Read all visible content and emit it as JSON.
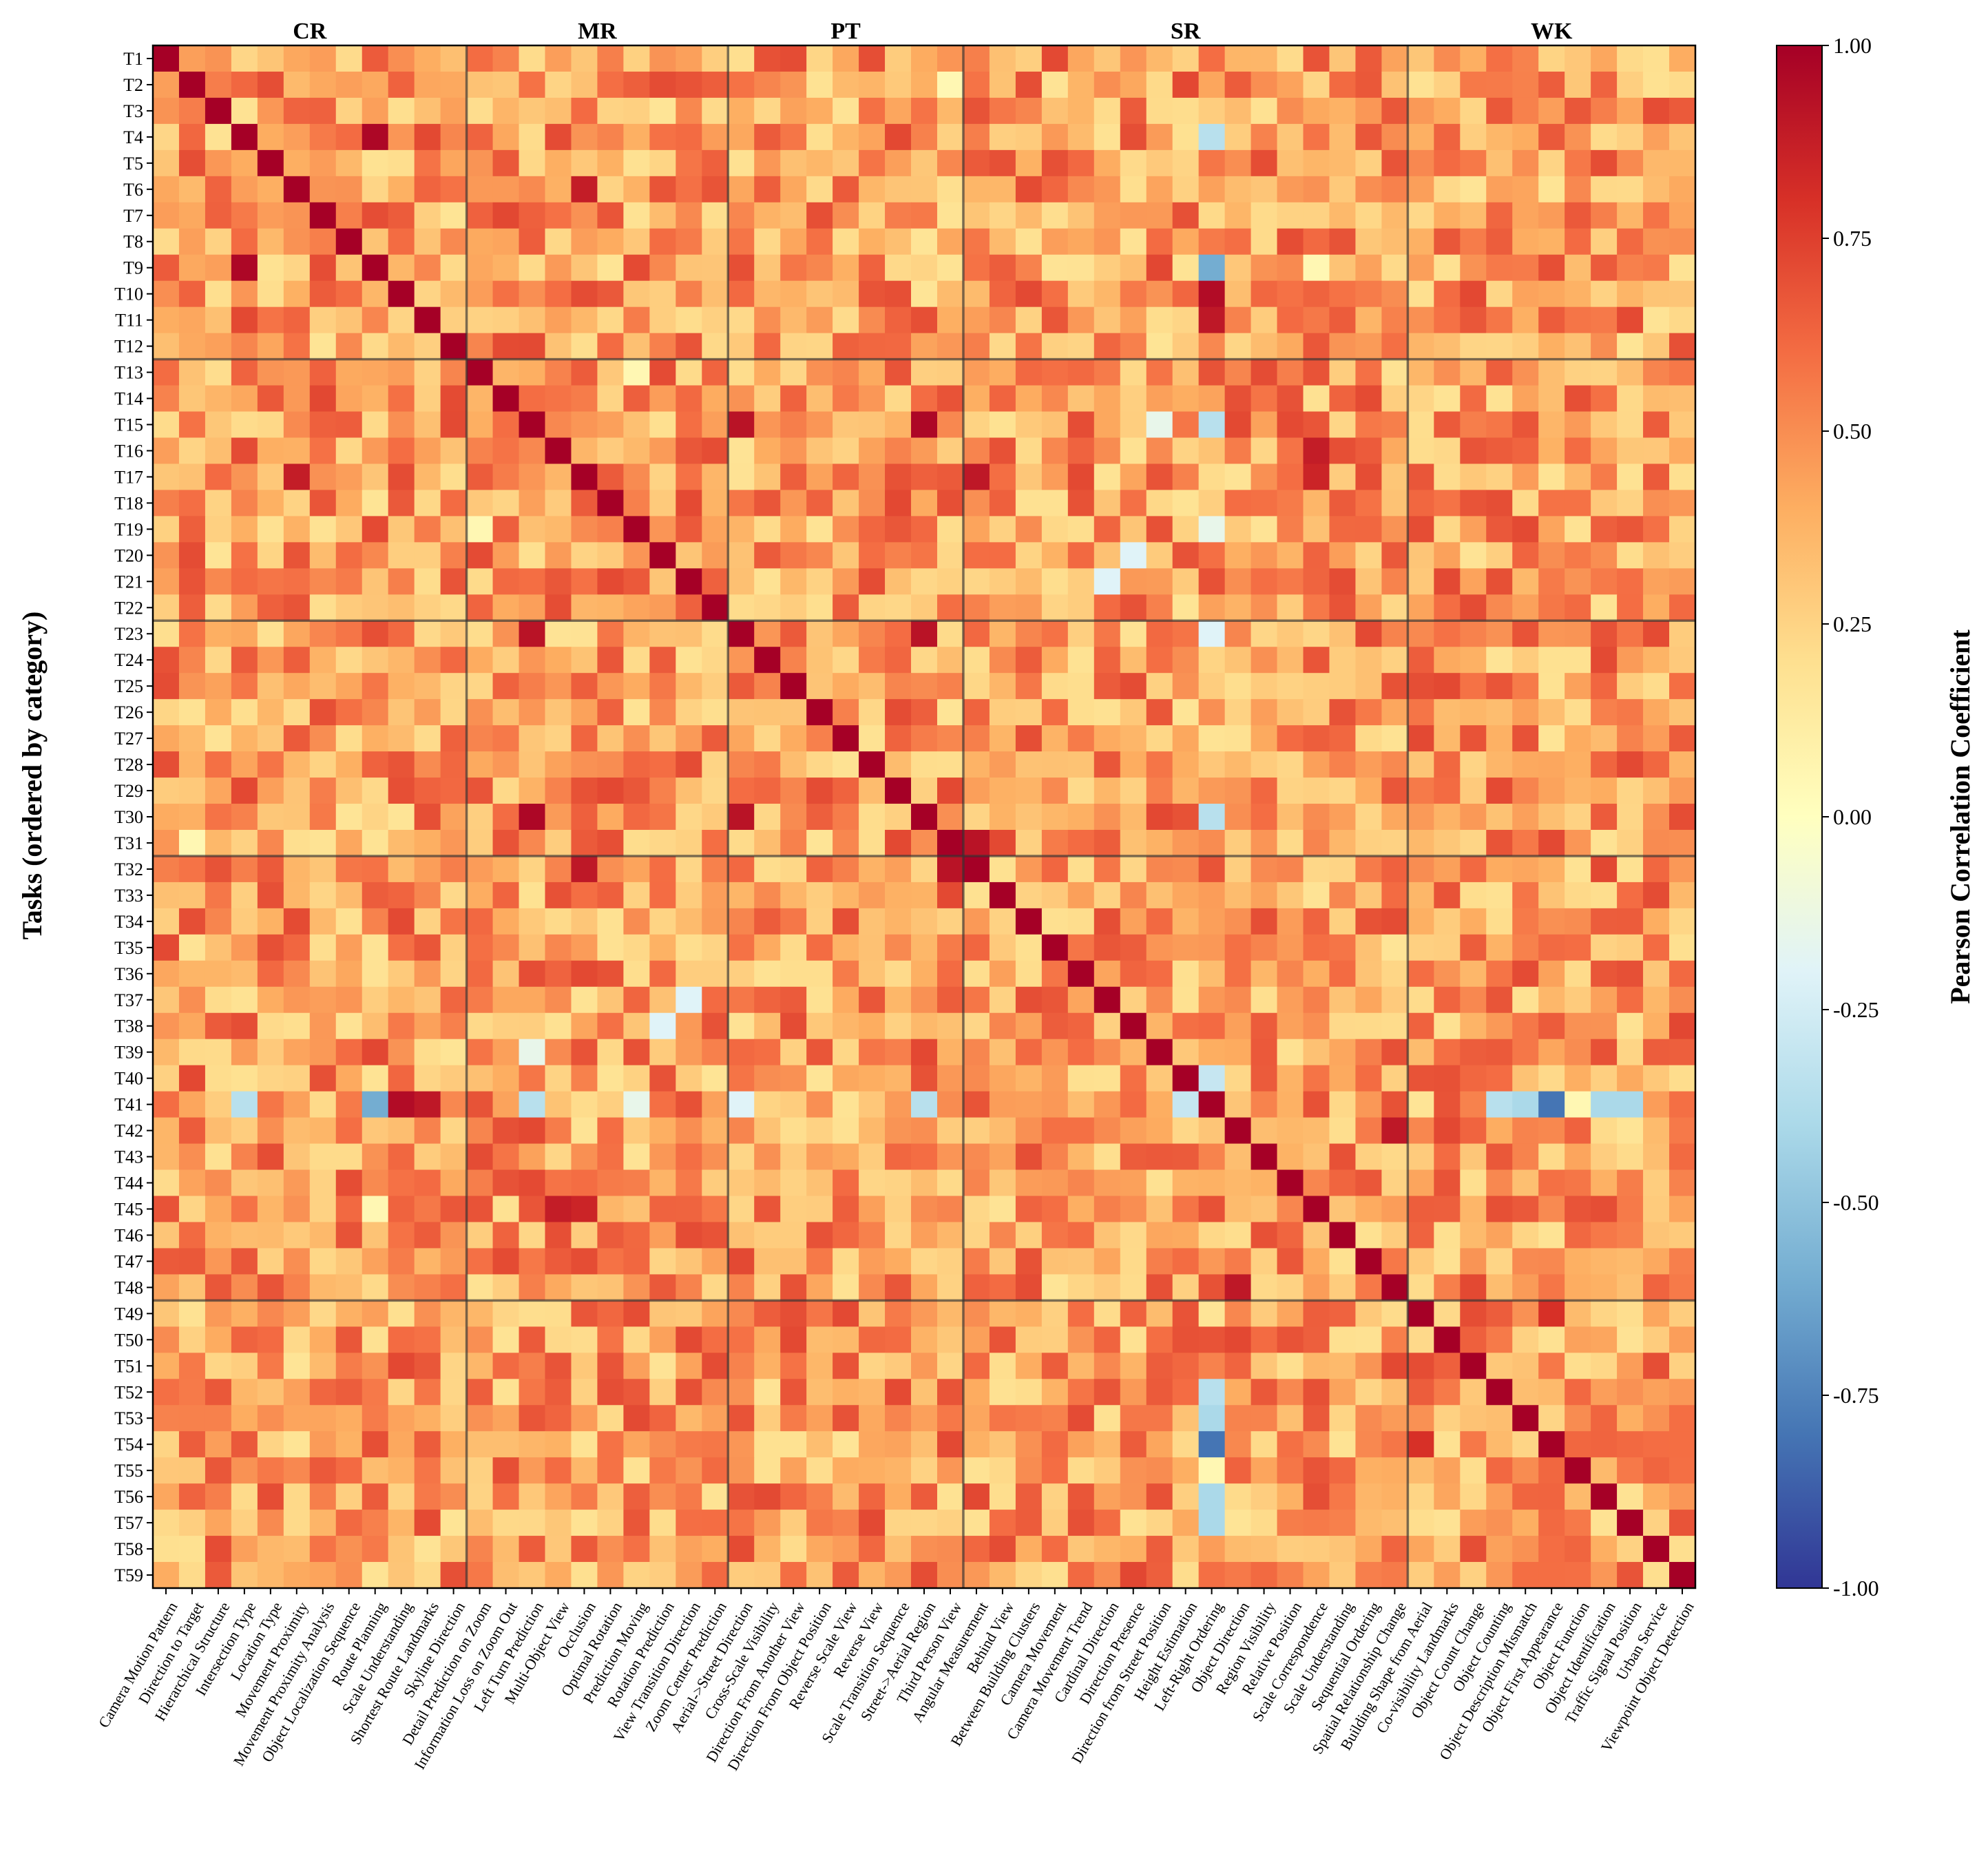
{
  "chart_data": {
    "type": "heatmap",
    "ylabel": "Tasks (ordered by category)",
    "row_labels": [
      "T1",
      "T2",
      "T3",
      "T4",
      "T5",
      "T6",
      "T7",
      "T8",
      "T9",
      "T10",
      "T11",
      "T12",
      "T13",
      "T14",
      "T15",
      "T16",
      "T17",
      "T18",
      "T19",
      "T20",
      "T21",
      "T22",
      "T23",
      "T24",
      "T25",
      "T26",
      "T27",
      "T28",
      "T29",
      "T30",
      "T31",
      "T32",
      "T33",
      "T34",
      "T35",
      "T36",
      "T37",
      "T38",
      "T39",
      "T40",
      "T41",
      "T42",
      "T43",
      "T44",
      "T45",
      "T46",
      "T47",
      "T48",
      "T49",
      "T50",
      "T51",
      "T52",
      "T53",
      "T54",
      "T55",
      "T56",
      "T57",
      "T58",
      "T59"
    ],
    "column_labels": [
      "Camera Motion Pattern",
      "Direction to Target",
      "Hierarchical Structure",
      "Intersection Type",
      "Location Type",
      "Movement Proximity",
      "Movement Proximity Analysis",
      "Object Localization Sequence",
      "Route Planning",
      "Scale Understanding",
      "Shortest Route Landmarks",
      "Skyline Direction",
      "Detail Prediction on Zoom",
      "Information Loss on Zoom Out",
      "Left Turn Prediction",
      "Multi-Object View",
      "Occlusion",
      "Optimal Rotation",
      "Prediction Moving",
      "Rotation Prediction",
      "View Transition Direction",
      "Zoom Center Prediction",
      "Aerial->Street Direction",
      "Cross-Scale Visibility",
      "Direction From Another View",
      "Direction From Object Position",
      "Reverse Scale View",
      "Reverse View",
      "Scale Transition Sequence",
      "Street->Aerial Region",
      "Third Person View",
      "Angular Measurement",
      "Behind View",
      "Between Building Clusters",
      "Camera Movement",
      "Camera Movement Trend",
      "Cardinal Direction",
      "Direction Presence",
      "Direction from Street Position",
      "Height Estimation",
      "Left-Right Ordering",
      "Object Direction",
      "Region Visibility",
      "Relative Position",
      "Scale Correspondence",
      "Scale Understanding",
      "Sequential Ordering",
      "Spatial Relationship Change",
      "Building Shape from Aerial",
      "Co-visibility Landmarks",
      "Object Count Change",
      "Object Counting",
      "Object Description Mismatch",
      "Object First Appearance",
      "Object Function",
      "Object Identification",
      "Traffic Signal Position",
      "Urban Service",
      "Viewpoint Object Detection"
    ],
    "categories": [
      {
        "name": "CR",
        "start": 0,
        "end": 12
      },
      {
        "name": "MR",
        "start": 12,
        "end": 22
      },
      {
        "name": "PT",
        "start": 22,
        "end": 31
      },
      {
        "name": "SR",
        "start": 31,
        "end": 48
      },
      {
        "name": "WK",
        "start": 48,
        "end": 59
      }
    ],
    "colorbar": {
      "label": "Pearson Correlation Coefficient",
      "ticks": [
        "1.00",
        "0.75",
        "0.50",
        "0.25",
        "0.00",
        "-0.25",
        "-0.50",
        "-0.75",
        "-1.00"
      ],
      "range": [
        -1,
        1
      ],
      "colormap": "RdYlBu_r"
    },
    "diagonal_value": 1.0,
    "baseline_value": 0.45,
    "notable_correlations": [
      {
        "row": 1,
        "col": 3,
        "value": 0.62
      },
      {
        "row": 3,
        "col": 8,
        "value": 0.97
      },
      {
        "row": 14,
        "col": 29,
        "value": 0.97
      },
      {
        "row": 14,
        "col": 22,
        "value": 0.92
      },
      {
        "row": 22,
        "col": 29,
        "value": 0.92
      },
      {
        "row": 5,
        "col": 16,
        "value": 0.88
      },
      {
        "row": 16,
        "col": 31,
        "value": 0.9
      },
      {
        "row": 10,
        "col": 40,
        "value": 0.9
      },
      {
        "row": 30,
        "col": 31,
        "value": 0.92
      },
      {
        "row": 41,
        "col": 47,
        "value": 0.9
      },
      {
        "row": 48,
        "col": 53,
        "value": 0.8
      },
      {
        "row": 16,
        "col": 44,
        "value": 0.85
      },
      {
        "row": 44,
        "col": 15,
        "value": 0.88
      },
      {
        "row": 3,
        "col": 40,
        "value": -0.35
      },
      {
        "row": 8,
        "col": 40,
        "value": -0.6
      },
      {
        "row": 14,
        "col": 40,
        "value": -0.35
      },
      {
        "row": 22,
        "col": 40,
        "value": -0.2
      },
      {
        "row": 29,
        "col": 40,
        "value": -0.35
      },
      {
        "row": 18,
        "col": 40,
        "value": -0.15
      },
      {
        "row": 19,
        "col": 37,
        "value": -0.2
      },
      {
        "row": 36,
        "col": 20,
        "value": -0.2
      },
      {
        "row": 39,
        "col": 40,
        "value": -0.3
      },
      {
        "row": 40,
        "col": 52,
        "value": -0.4
      },
      {
        "row": 40,
        "col": 54,
        "value": -0.8
      },
      {
        "row": 40,
        "col": 56,
        "value": -0.4
      },
      {
        "row": 40,
        "col": 55,
        "value": 0.05
      },
      {
        "row": 40,
        "col": 9,
        "value": 0.95
      },
      {
        "row": 51,
        "col": 40,
        "value": -0.35
      },
      {
        "row": 53,
        "col": 40,
        "value": -0.8
      },
      {
        "row": 55,
        "col": 40,
        "value": -0.4
      },
      {
        "row": 54,
        "col": 40,
        "value": 0.05
      },
      {
        "row": 14,
        "col": 38,
        "value": -0.15
      },
      {
        "row": 1,
        "col": 30,
        "value": 0.05
      },
      {
        "row": 30,
        "col": 1,
        "value": 0.05
      },
      {
        "row": 8,
        "col": 44,
        "value": 0.05
      },
      {
        "row": 12,
        "col": 18,
        "value": 0.05
      }
    ],
    "grid": false
  }
}
